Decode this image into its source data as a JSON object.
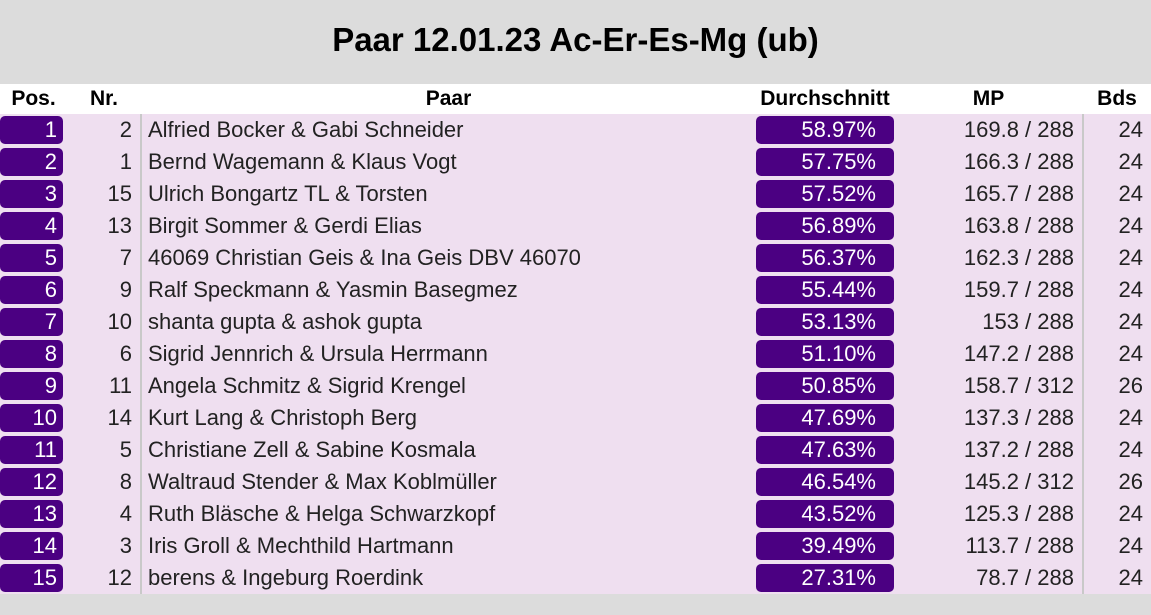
{
  "title": "Paar 12.01.23 Ac-Er-Es-Mg (ub)",
  "columns": {
    "pos": "Pos.",
    "nr": "Nr.",
    "paar": "Paar",
    "avg": "Durchschnitt",
    "mp": "MP",
    "bds": "Bds"
  },
  "colors": {
    "accent": "#4b0082",
    "row_bg": "#efdff0",
    "page_bg": "#dcdcdc"
  },
  "rows": [
    {
      "pos": "1",
      "nr": "2",
      "paar": "Alfried Bocker & Gabi Schneider",
      "avg": "58.97%",
      "mp": "169.8 / 288",
      "bds": "24"
    },
    {
      "pos": "2",
      "nr": "1",
      "paar": "Bernd Wagemann & Klaus Vogt",
      "avg": "57.75%",
      "mp": "166.3 / 288",
      "bds": "24"
    },
    {
      "pos": "3",
      "nr": "15",
      "paar": "Ulrich Bongartz TL & Torsten",
      "avg": "57.52%",
      "mp": "165.7 / 288",
      "bds": "24"
    },
    {
      "pos": "4",
      "nr": "13",
      "paar": "Birgit Sommer & Gerdi Elias",
      "avg": "56.89%",
      "mp": "163.8 / 288",
      "bds": "24"
    },
    {
      "pos": "5",
      "nr": "7",
      "paar": "46069 Christian Geis & Ina Geis DBV 46070",
      "avg": "56.37%",
      "mp": "162.3 / 288",
      "bds": "24"
    },
    {
      "pos": "6",
      "nr": "9",
      "paar": "Ralf Speckmann & Yasmin Basegmez",
      "avg": "55.44%",
      "mp": "159.7 / 288",
      "bds": "24"
    },
    {
      "pos": "7",
      "nr": "10",
      "paar": "shanta gupta & ashok gupta",
      "avg": "53.13%",
      "mp": "153 / 288",
      "bds": "24"
    },
    {
      "pos": "8",
      "nr": "6",
      "paar": "Sigrid Jennrich & Ursula Herrmann",
      "avg": "51.10%",
      "mp": "147.2 / 288",
      "bds": "24"
    },
    {
      "pos": "9",
      "nr": "11",
      "paar": "Angela Schmitz & Sigrid Krengel",
      "avg": "50.85%",
      "mp": "158.7 / 312",
      "bds": "26"
    },
    {
      "pos": "10",
      "nr": "14",
      "paar": "Kurt Lang & Christoph Berg",
      "avg": "47.69%",
      "mp": "137.3 / 288",
      "bds": "24"
    },
    {
      "pos": "11",
      "nr": "5",
      "paar": "Christiane Zell & Sabine Kosmala",
      "avg": "47.63%",
      "mp": "137.2 / 288",
      "bds": "24"
    },
    {
      "pos": "12",
      "nr": "8",
      "paar": "Waltraud Stender & Max Koblmüller",
      "avg": "46.54%",
      "mp": "145.2 / 312",
      "bds": "26"
    },
    {
      "pos": "13",
      "nr": "4",
      "paar": "Ruth Bläsche & Helga Schwarzkopf",
      "avg": "43.52%",
      "mp": "125.3 / 288",
      "bds": "24"
    },
    {
      "pos": "14",
      "nr": "3",
      "paar": "Iris Groll & Mechthild Hartmann",
      "avg": "39.49%",
      "mp": "113.7 / 288",
      "bds": "24"
    },
    {
      "pos": "15",
      "nr": "12",
      "paar": "berens & Ingeburg Roerdink",
      "avg": "27.31%",
      "mp": "78.7 / 288",
      "bds": "24"
    }
  ]
}
